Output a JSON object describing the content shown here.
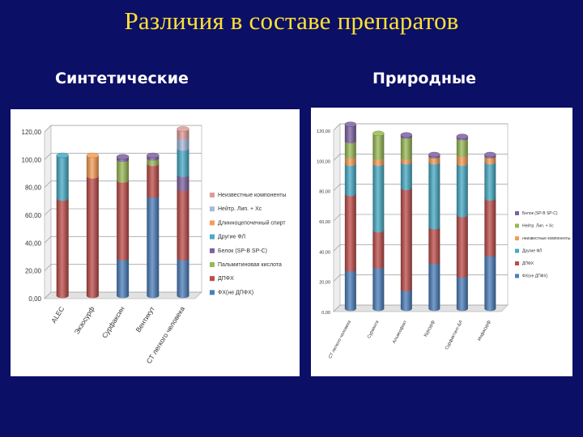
{
  "slide": {
    "title": "Различия в составе препаратов",
    "left_heading": "Синтетические",
    "right_heading": "Природные"
  },
  "chart_data": [
    {
      "type": "bar",
      "stacked": true,
      "title": "Синтетические",
      "categories": [
        "ALEC",
        "Экзосурф",
        "Сурфаксин",
        "Вентикут",
        "СТ легкого человека"
      ],
      "ylim": [
        0,
        120
      ],
      "yticks": [
        "0,00",
        "20,00",
        "40,00",
        "60,00",
        "80,00",
        "100,00",
        "120,00"
      ],
      "grid": true,
      "legend_position": "right",
      "series": [
        {
          "name": "ФХ(не ДПФХ)",
          "color": "#4a7ebb",
          "values": [
            0,
            0,
            27,
            72,
            27
          ]
        },
        {
          "name": "ДПФХ",
          "color": "#be4b48",
          "values": [
            70,
            86,
            56,
            23,
            50
          ]
        },
        {
          "name": "Пальмитиновая кислота",
          "color": "#98b954",
          "values": [
            0,
            0,
            15,
            4,
            0
          ]
        },
        {
          "name": "Белок (SP-B SP-C)",
          "color": "#7d60a0",
          "values": [
            0,
            0,
            2,
            2,
            10
          ]
        },
        {
          "name": "Другие ФЛ",
          "color": "#46aac5",
          "values": [
            31,
            0,
            0,
            0,
            19
          ]
        },
        {
          "name": "Длинноцепочечный спирт",
          "color": "#f59d56",
          "values": [
            0,
            15,
            0,
            0,
            0
          ]
        },
        {
          "name": "Нейтр. Лип. + Хс",
          "color": "#a5b9dc",
          "values": [
            0,
            0,
            0,
            0,
            8
          ]
        },
        {
          "name": "Неизвестные компоненты",
          "color": "#dd9c9b",
          "values": [
            0,
            0,
            0,
            0,
            6
          ]
        }
      ]
    },
    {
      "type": "bar",
      "stacked": true,
      "title": "Природные",
      "categories": [
        "СТ легкого человека",
        "Сурванта",
        "Альвеофакт",
        "Курсурф",
        "Сурфактант-БЛ",
        "Инфасурф"
      ],
      "ylim": [
        0,
        120
      ],
      "yticks": [
        "0,00",
        "20,00",
        "40,00",
        "60,00",
        "80,00",
        "100,00",
        "120,00"
      ],
      "grid": true,
      "legend_position": "right",
      "series": [
        {
          "name": "ФХ(не ДПФХ)",
          "color": "#4a7ebb",
          "values": [
            26,
            28,
            13,
            31,
            22,
            36
          ]
        },
        {
          "name": "ДПФХ",
          "color": "#be4b48",
          "values": [
            50,
            24,
            67,
            23,
            40,
            37
          ]
        },
        {
          "name": "Другие ФЛ",
          "color": "#46aac5",
          "values": [
            20,
            44,
            17,
            43,
            34,
            24
          ]
        },
        {
          "name": "неизвестные компоненты",
          "color": "#f59d56",
          "values": [
            5,
            4,
            3,
            4,
            6,
            4
          ]
        },
        {
          "name": "Нейтр. Лип. + Хс",
          "color": "#98b954",
          "values": [
            10,
            16,
            14,
            0,
            11,
            0
          ]
        },
        {
          "name": "Белок (SP-B SP-C)",
          "color": "#7d60a0",
          "values": [
            11,
            0,
            1,
            1,
            1,
            1
          ]
        }
      ],
      "legend_order": [
        "Белок (SP-B SP-C)",
        "Нейтр. Лип. + Хс",
        "неизвестные компоненты",
        "Другие ФЛ",
        "ДПФХ",
        "ФХ(не ДПФХ)"
      ]
    }
  ]
}
